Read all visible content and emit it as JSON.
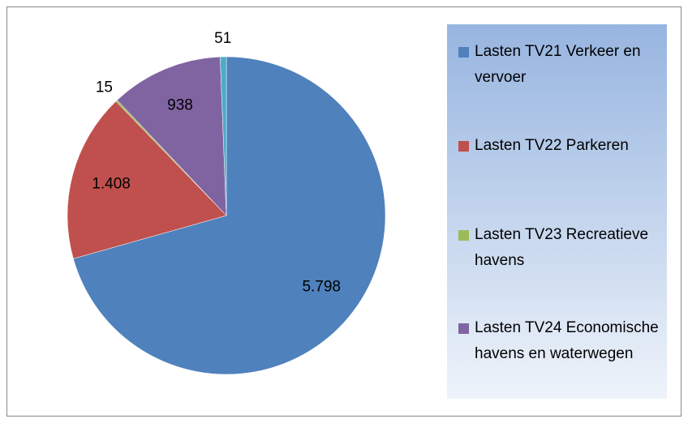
{
  "chart_data": {
    "type": "pie",
    "categories": [
      "Lasten TV21 Verkeer en vervoer",
      "Lasten TV22 Parkeren",
      "Lasten TV23 Recreatieve havens",
      "Lasten TV24 Economische havens en waterwegen",
      null
    ],
    "values": [
      5798,
      1408,
      15,
      938,
      51
    ],
    "value_labels": [
      "5.798",
      "1.408",
      "15",
      "938",
      "51"
    ],
    "colors": [
      "#4f81bd",
      "#c0504d",
      "#9bbb59",
      "#8064a2",
      "#4bacc6"
    ],
    "legend": "right"
  }
}
